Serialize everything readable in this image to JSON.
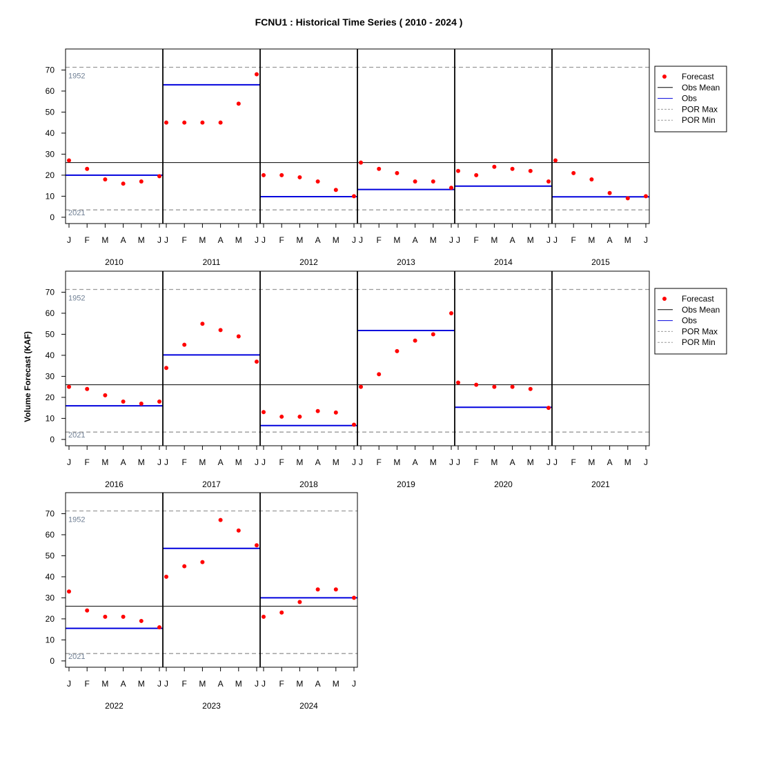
{
  "chart_data": {
    "type": "scatter",
    "title": "FCNU1 : Historical Time Series ( 2010 - 2024 )",
    "ylabel": "Volume Forecast (KAF)",
    "xlabel": "",
    "ylim": [
      -3,
      80
    ],
    "yticks": [
      0,
      10,
      20,
      30,
      40,
      50,
      60,
      70
    ],
    "months": [
      "J",
      "F",
      "M",
      "A",
      "M",
      "J"
    ],
    "grid": false,
    "legend_position": "right",
    "obs_mean": 26,
    "por_max": {
      "value": 71.3,
      "label": "1952"
    },
    "por_min": {
      "value": 3.5,
      "label": "2021"
    },
    "legend": {
      "forecast": "Forecast",
      "obs_mean": "Obs Mean",
      "obs": "Obs",
      "por_max": "POR Max",
      "por_min": "POR Min"
    },
    "colors": {
      "forecast": "#ff0000",
      "obs": "#0000dd",
      "obs_mean": "#000000",
      "por": "#999999",
      "por_label": "#6f7f94"
    },
    "years": [
      {
        "year": "2010",
        "forecast": [
          27,
          23,
          18,
          16,
          17,
          19.5
        ],
        "obs": 20
      },
      {
        "year": "2011",
        "forecast": [
          45,
          45,
          45,
          45,
          54,
          68
        ],
        "obs": 63
      },
      {
        "year": "2012",
        "forecast": [
          20,
          20,
          19,
          17,
          13,
          10
        ],
        "obs": 9.8
      },
      {
        "year": "2013",
        "forecast": [
          26,
          23,
          21,
          17,
          17,
          14
        ],
        "obs": 13.2
      },
      {
        "year": "2014",
        "forecast": [
          22,
          20,
          24,
          23,
          22,
          17
        ],
        "obs": 14.8
      },
      {
        "year": "2015",
        "forecast": [
          27,
          21,
          18,
          11.5,
          9,
          10
        ],
        "obs": 9.7
      },
      {
        "year": "2016",
        "forecast": [
          25,
          24,
          21,
          18,
          17,
          18
        ],
        "obs": 16
      },
      {
        "year": "2017",
        "forecast": [
          34,
          45,
          55,
          52,
          49,
          37
        ],
        "obs": 40.2
      },
      {
        "year": "2018",
        "forecast": [
          13,
          10.8,
          10.8,
          13.5,
          12.8,
          7
        ],
        "obs": 6.6
      },
      {
        "year": "2019",
        "forecast": [
          25,
          31,
          42,
          47,
          50,
          60
        ],
        "obs": 51.8
      },
      {
        "year": "2020",
        "forecast": [
          27,
          26,
          25,
          25,
          24,
          15
        ],
        "obs": 15.3
      },
      {
        "year": "2021",
        "forecast": [],
        "obs": null
      },
      {
        "year": "2022",
        "forecast": [
          33,
          24,
          21,
          21,
          19,
          16
        ],
        "obs": 15.5
      },
      {
        "year": "2023",
        "forecast": [
          40,
          45,
          47,
          67,
          62,
          55
        ],
        "obs": 53.5
      },
      {
        "year": "2024",
        "forecast": [
          21,
          23,
          28,
          34,
          34,
          30
        ],
        "obs": 30
      }
    ]
  }
}
